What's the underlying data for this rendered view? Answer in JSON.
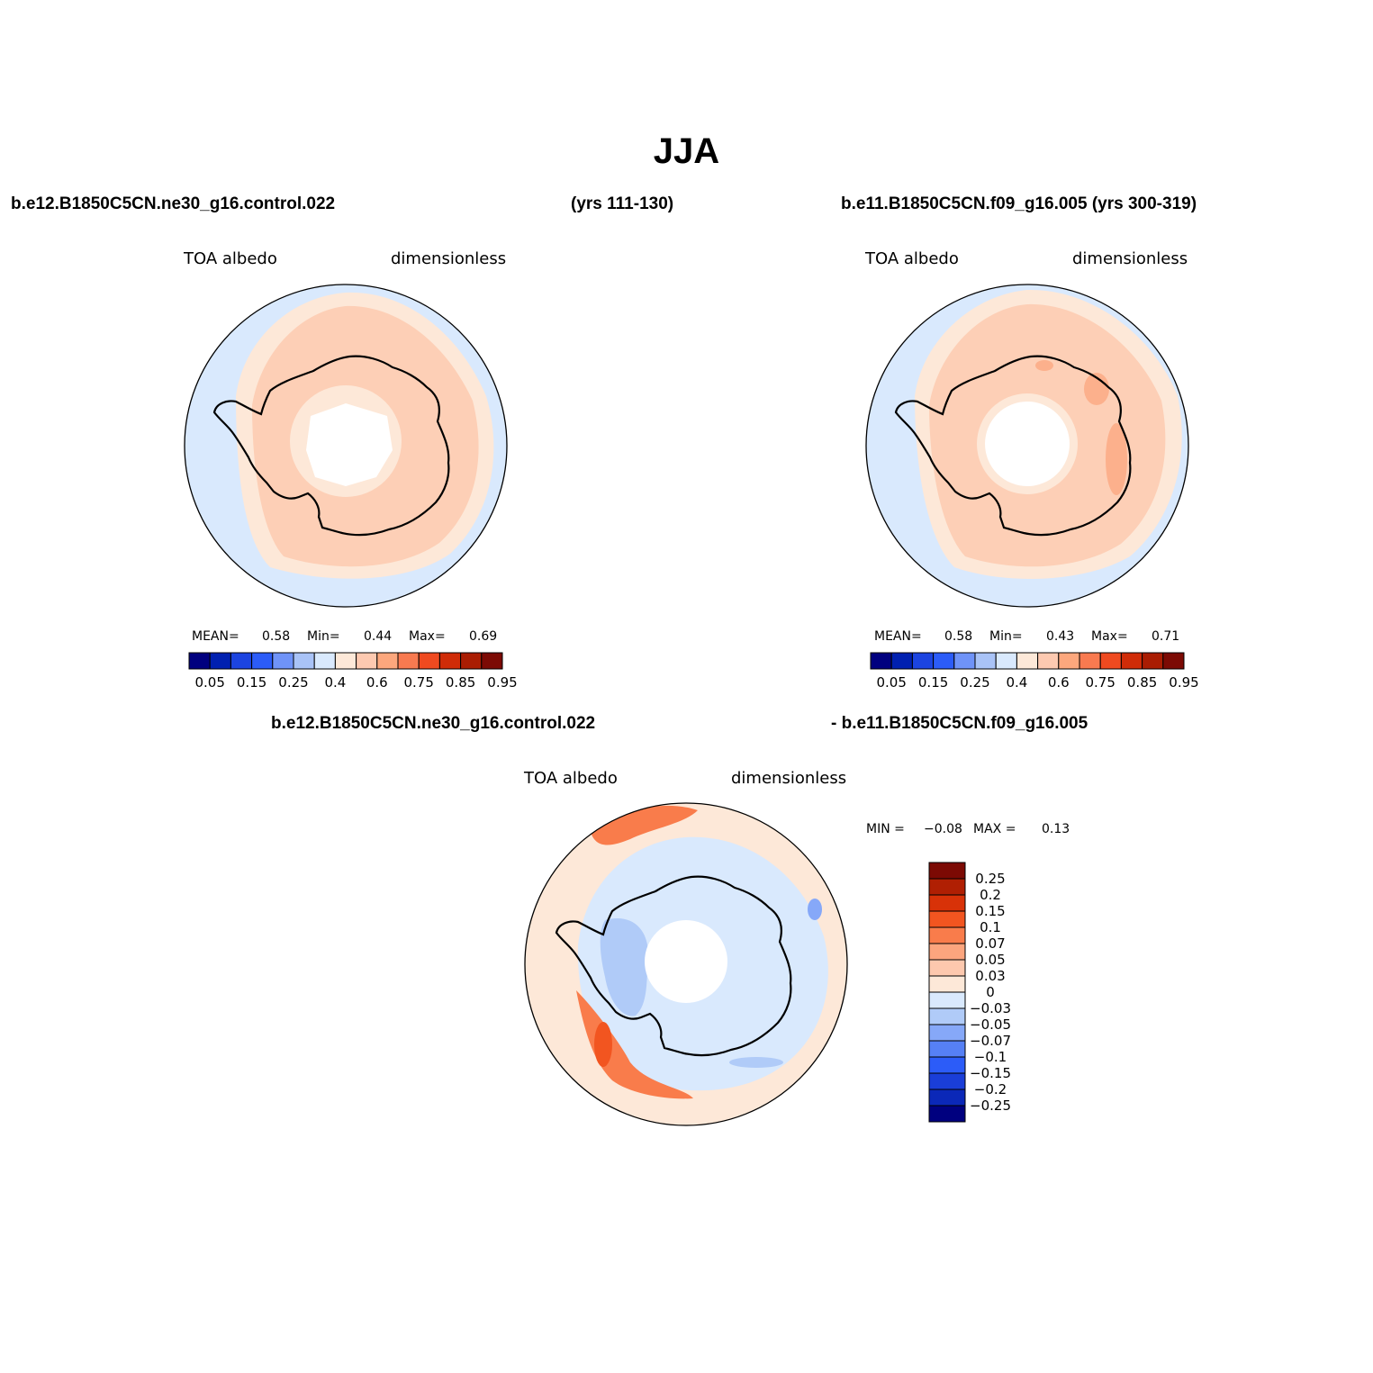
{
  "title": "JJA",
  "header": {
    "left_case": "b.e12.B1850C5CN.ne30_g16.control.022",
    "left_years": "(yrs 111-130)",
    "right_case": "b.e11.B1850C5CN.f09_g16.005 (yrs 300-319)",
    "diff_case_a": "b.e12.B1850C5CN.ne30_g16.control.022",
    "diff_case_b": "- b.e11.B1850C5CN.f09_g16.005"
  },
  "panels": [
    {
      "variable": "TOA albedo",
      "units": "dimensionless",
      "mean_label": "MEAN=",
      "mean": "0.58",
      "min_label": "Min=",
      "min": "0.44",
      "max_label": "Max=",
      "max": "0.69"
    },
    {
      "variable": "TOA albedo",
      "units": "dimensionless",
      "mean_label": "MEAN=",
      "mean": "0.58",
      "min_label": "Min=",
      "min": "0.43",
      "max_label": "Max=",
      "max": "0.71"
    }
  ],
  "diff_panel": {
    "variable": "TOA albedo",
    "units": "dimensionless",
    "min_label": "MIN =",
    "min": "−0.08",
    "max_label": "MAX =",
    "max": "0.13"
  },
  "colorbar_abs": {
    "colors": [
      "#00007f",
      "#0020b0",
      "#1c44e0",
      "#2c5cf8",
      "#6f93f8",
      "#a9c3f7",
      "#d9e9fd",
      "#fde8d8",
      "#fdc9b0",
      "#fca77d",
      "#f87a50",
      "#ef4a20",
      "#d02c08",
      "#aa1d03",
      "#7c0a04"
    ],
    "labels": [
      "0.05",
      "0.15",
      "0.25",
      "0.4",
      "0.6",
      "0.75",
      "0.85",
      "0.95"
    ]
  },
  "colorbar_diff": {
    "colors": [
      "#7c0a04",
      "#b01f03",
      "#d83208",
      "#f25520",
      "#f97c4b",
      "#fca57e",
      "#fdc8ae",
      "#fde8d8",
      "#d9e9fd",
      "#b0cbf8",
      "#86a8f8",
      "#5680f5",
      "#2c5cf8",
      "#1a3ed8",
      "#0b28b8",
      "#00007f"
    ],
    "labels": [
      "0.25",
      "0.2",
      "0.15",
      "0.1",
      "0.07",
      "0.05",
      "0.03",
      "0",
      "−0.03",
      "−0.05",
      "−0.07",
      "−0.1",
      "−0.15",
      "−0.2",
      "−0.25"
    ]
  }
}
